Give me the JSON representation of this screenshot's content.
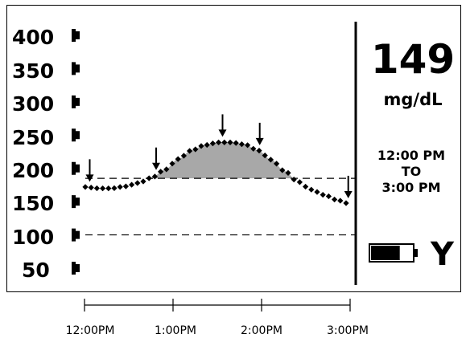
{
  "y_axis": {
    "labels": [
      "400",
      "350",
      "300",
      "250",
      "200",
      "150",
      "100",
      "50"
    ]
  },
  "reading": {
    "value": "149",
    "unit": "mg/dL"
  },
  "time_range": {
    "start": "12:00 PM",
    "to": "TO",
    "end": "3:00 PM"
  },
  "battery": {
    "icon": "battery-icon",
    "level": 0.7
  },
  "channel": "Y",
  "x_axis": {
    "labels": [
      "12:00PM",
      "1:00PM",
      "2:00PM",
      "3:00PM"
    ]
  },
  "colors": {
    "ink": "#000000",
    "area_fill": "#a8a8a8",
    "background": "#ffffff"
  },
  "chart_data": {
    "type": "line",
    "title": "",
    "ylabel": "",
    "xlabel": "",
    "ylim": [
      25,
      425
    ],
    "yticks": [
      50,
      100,
      150,
      200,
      250,
      300,
      350,
      400
    ],
    "x_domain": [
      0,
      3
    ],
    "thresholds": [
      185,
      100
    ],
    "series": [
      {
        "x": [
          0,
          0.15,
          0.3,
          0.45,
          0.6,
          0.75,
          0.9,
          1.05,
          1.2,
          1.35,
          1.5,
          1.65,
          1.8,
          1.95,
          2.1,
          2.25,
          2.4,
          2.55,
          2.7,
          2.85,
          3.0
        ],
        "values": [
          172,
          170,
          170,
          173,
          178,
          186,
          198,
          214,
          227,
          235,
          239,
          239,
          236,
          227,
          213,
          196,
          180,
          168,
          160,
          152,
          146
        ]
      }
    ],
    "shaded_region": {
      "above": 185
    },
    "event_markers": [
      0.05,
      0.8,
      1.55,
      1.97,
      2.97
    ]
  }
}
